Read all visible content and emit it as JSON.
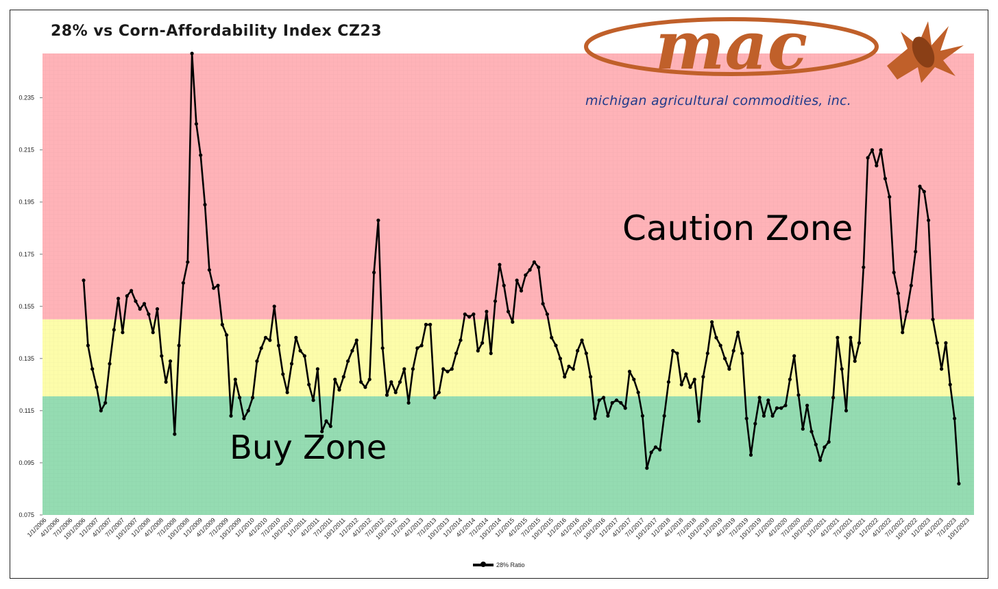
{
  "title": "28% vs Corn-Affordability Index CZ23",
  "logo": {
    "wordmark": "mac",
    "subtitle": "michigan agricultural commodities, inc.",
    "icon": "corn-ear-icon",
    "brand_color": "#c0602a",
    "subtitle_color": "#1f3a8a"
  },
  "zones": {
    "caution_label": "Caution Zone",
    "buy_label": "Buy Zone",
    "caution_range": [
      0.15,
      0.252
    ],
    "neutral_range": [
      0.1205,
      0.15
    ],
    "buy_range": [
      0.075,
      0.1205
    ],
    "caution_color": "#ffb3b8",
    "neutral_color": "#fdfdaa",
    "buy_color": "#95dcb2"
  },
  "chart_data": {
    "type": "line",
    "title": "28% vs Corn-Affordability Index CZ23",
    "xlabel": "",
    "ylabel": "",
    "ylim": [
      0.075,
      0.252
    ],
    "yticks": [
      "0.075",
      "0.095",
      "0.115",
      "0.135",
      "0.155",
      "0.175",
      "0.195",
      "0.215",
      "0.235"
    ],
    "xticks": [
      "1/1/2006",
      "4/1/2006",
      "7/1/2006",
      "10/1/2006",
      "1/1/2007",
      "4/1/2007",
      "7/1/2007",
      "10/1/2007",
      "1/1/2008",
      "4/1/2008",
      "7/1/2008",
      "10/1/2008",
      "1/1/2009",
      "4/1/2009",
      "7/1/2009",
      "10/1/2009",
      "1/1/2010",
      "4/1/2010",
      "7/1/2010",
      "10/1/2010",
      "1/1/2011",
      "4/1/2011",
      "7/1/2011",
      "10/1/2011",
      "1/1/2012",
      "4/1/2012",
      "7/1/2012",
      "10/1/2012",
      "1/1/2013",
      "4/1/2013",
      "7/1/2013",
      "10/1/2013",
      "1/1/2014",
      "4/1/2014",
      "7/1/2014",
      "10/1/2014",
      "1/1/2015",
      "4/1/2015",
      "7/1/2015",
      "10/1/2015",
      "1/1/2016",
      "4/1/2016",
      "7/1/2016",
      "10/1/2016",
      "1/1/2017",
      "4/1/2017",
      "7/1/2017",
      "10/1/2017",
      "1/1/2018",
      "4/1/2018",
      "7/1/2018",
      "10/1/2018",
      "1/1/2019",
      "4/1/2019",
      "7/1/2019",
      "10/1/2019",
      "1/1/2020",
      "4/1/2020",
      "7/1/2020",
      "10/1/2020",
      "1/1/2021",
      "4/1/2021",
      "7/1/2021",
      "10/1/2021",
      "1/1/2022",
      "4/1/2022",
      "7/1/2022",
      "10/1/2022",
      "1/1/2023",
      "4/1/2023",
      "7/1/2023",
      "10/1/2023"
    ],
    "grid": true,
    "legend_position": "bottom",
    "series": [
      {
        "name": "28% Ratio",
        "color": "#000000",
        "x_start": "10/1/2006",
        "x_step_months": 1,
        "values": [
          0.165,
          0.14,
          0.131,
          0.124,
          0.115,
          0.118,
          0.133,
          0.146,
          0.158,
          0.145,
          0.159,
          0.161,
          0.157,
          0.154,
          0.156,
          0.152,
          0.145,
          0.154,
          0.136,
          0.126,
          0.134,
          0.106,
          0.14,
          0.164,
          0.172,
          0.252,
          0.225,
          0.213,
          0.194,
          0.169,
          0.162,
          0.163,
          0.148,
          0.144,
          0.113,
          0.127,
          0.12,
          0.112,
          0.115,
          0.12,
          0.134,
          0.139,
          0.143,
          0.142,
          0.155,
          0.14,
          0.129,
          0.122,
          0.133,
          0.143,
          0.138,
          0.136,
          0.125,
          0.119,
          0.131,
          0.107,
          0.111,
          0.109,
          0.127,
          0.123,
          0.128,
          0.134,
          0.138,
          0.142,
          0.126,
          0.124,
          0.127,
          0.168,
          0.188,
          0.139,
          0.121,
          0.126,
          0.122,
          0.126,
          0.131,
          0.118,
          0.131,
          0.139,
          0.14,
          0.148,
          0.148,
          0.12,
          0.122,
          0.131,
          0.13,
          0.131,
          0.137,
          0.142,
          0.152,
          0.151,
          0.152,
          0.138,
          0.141,
          0.153,
          0.137,
          0.157,
          0.171,
          0.163,
          0.153,
          0.149,
          0.165,
          0.161,
          0.167,
          0.169,
          0.172,
          0.17,
          0.156,
          0.152,
          0.143,
          0.14,
          0.135,
          0.128,
          0.132,
          0.131,
          0.138,
          0.142,
          0.137,
          0.128,
          0.112,
          0.119,
          0.12,
          0.113,
          0.118,
          0.119,
          0.118,
          0.116,
          0.13,
          0.127,
          0.122,
          0.113,
          0.093,
          0.099,
          0.101,
          0.1,
          0.113,
          0.126,
          0.138,
          0.137,
          0.125,
          0.129,
          0.124,
          0.127,
          0.111,
          0.128,
          0.137,
          0.149,
          0.143,
          0.14,
          0.135,
          0.131,
          0.138,
          0.145,
          0.137,
          0.112,
          0.098,
          0.11,
          0.12,
          0.113,
          0.119,
          0.113,
          0.116,
          0.116,
          0.117,
          0.127,
          0.136,
          0.121,
          0.108,
          0.117,
          0.107,
          0.102,
          0.096,
          0.101,
          0.103,
          0.12,
          0.143,
          0.131,
          0.115,
          0.143,
          0.134,
          0.141,
          0.17,
          0.212,
          0.215,
          0.209,
          0.215,
          0.204,
          0.197,
          0.168,
          0.16,
          0.145,
          0.153,
          0.163,
          0.176,
          0.201,
          0.199,
          0.188,
          0.15,
          0.141,
          0.131,
          0.141,
          0.125,
          0.112,
          0.087
        ]
      }
    ]
  }
}
